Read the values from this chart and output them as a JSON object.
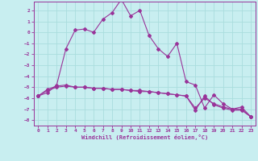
{
  "xlabel": "Windchill (Refroidissement éolien,°C)",
  "bg_color": "#c8eef0",
  "grid_color": "#aadddd",
  "line_color": "#993399",
  "xlim": [
    -0.5,
    23.5
  ],
  "ylim": [
    -8.5,
    2.8
  ],
  "xticks": [
    0,
    1,
    2,
    3,
    4,
    5,
    6,
    7,
    8,
    9,
    10,
    11,
    12,
    13,
    14,
    15,
    16,
    17,
    18,
    19,
    20,
    21,
    22,
    23
  ],
  "yticks": [
    -8,
    -7,
    -6,
    -5,
    -4,
    -3,
    -2,
    -1,
    0,
    1,
    2
  ],
  "line1_x": [
    0,
    1,
    2,
    3,
    4,
    5,
    6,
    7,
    8,
    9,
    10,
    11,
    12,
    13,
    14,
    15,
    16,
    17,
    18,
    19,
    20,
    21,
    22,
    23
  ],
  "line1_y": [
    -5.8,
    -5.5,
    -4.8,
    -1.5,
    0.2,
    0.3,
    0.0,
    1.2,
    1.8,
    3.0,
    1.5,
    2.0,
    -0.3,
    -1.5,
    -2.2,
    -1.0,
    -4.5,
    -4.8,
    -6.9,
    -5.7,
    -6.5,
    -7.0,
    -6.8,
    -7.7
  ],
  "line2_x": [
    0,
    1,
    2,
    3,
    4,
    5,
    6,
    7,
    8,
    9,
    10,
    11,
    12,
    13,
    14,
    15,
    16,
    17,
    18,
    19,
    20,
    21,
    22,
    23
  ],
  "line2_y": [
    -5.8,
    -5.3,
    -5.0,
    -4.9,
    -5.0,
    -5.0,
    -5.1,
    -5.1,
    -5.2,
    -5.2,
    -5.3,
    -5.3,
    -5.4,
    -5.5,
    -5.6,
    -5.7,
    -5.8,
    -6.9,
    -6.0,
    -6.5,
    -6.8,
    -7.0,
    -7.0,
    -7.7
  ],
  "line3_x": [
    0,
    1,
    2,
    3,
    4,
    5,
    6,
    7,
    8,
    9,
    10,
    11,
    12,
    13,
    14,
    15,
    16,
    17,
    18,
    19,
    20,
    21,
    22,
    23
  ],
  "line3_y": [
    -5.8,
    -5.2,
    -4.9,
    -4.8,
    -5.0,
    -5.0,
    -5.1,
    -5.1,
    -5.2,
    -5.2,
    -5.3,
    -5.4,
    -5.4,
    -5.5,
    -5.6,
    -5.7,
    -5.8,
    -7.1,
    -5.8,
    -6.6,
    -6.9,
    -7.1,
    -7.1,
    -7.7
  ]
}
